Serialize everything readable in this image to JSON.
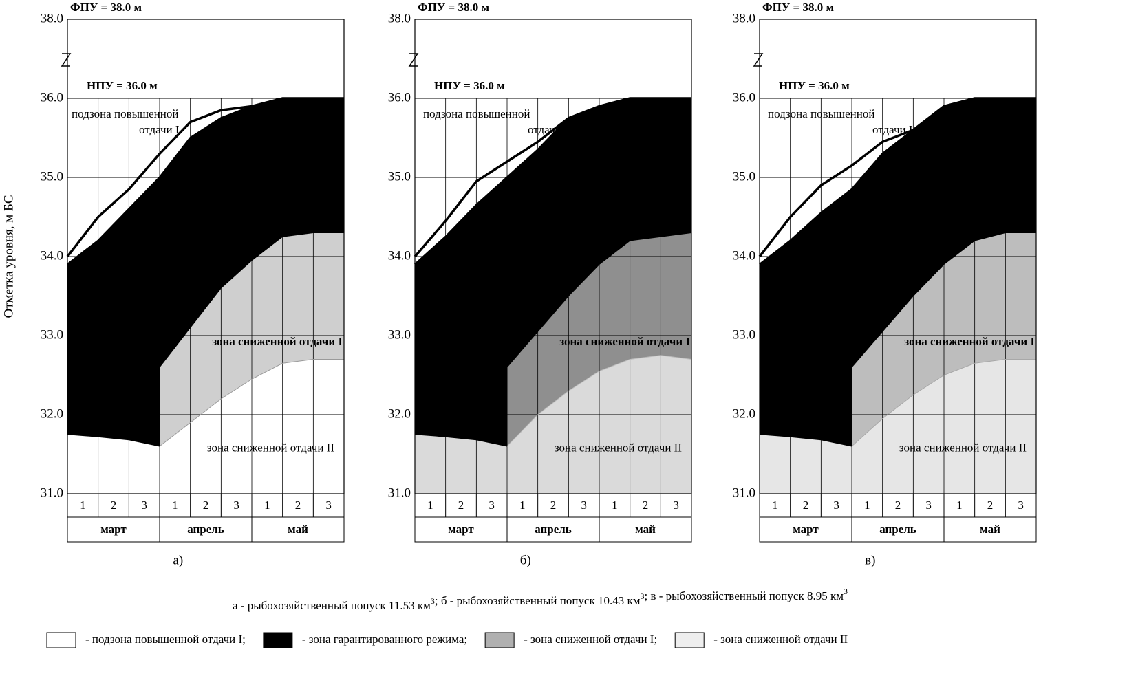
{
  "chart_data": [
    {
      "type": "area",
      "label": "а)",
      "ylabel": "Отметка уровня, м БС",
      "fpu": "ФПУ = 38.0 м",
      "npu": "НПУ = 36.0 м",
      "zone_labels": [
        "подзона  повышенной",
        "отдачи I",
        "зона сниженной отдачи I",
        "зона сниженной отдачи II"
      ],
      "decades": [
        "1",
        "2",
        "3",
        "1",
        "2",
        "3",
        "1",
        "2",
        "3"
      ],
      "months": [
        "март",
        "апрель",
        "май"
      ],
      "x": [
        0,
        1,
        2,
        3,
        3,
        4,
        5,
        6,
        7,
        8,
        9
      ],
      "xlim": [
        0,
        9
      ],
      "ylim": [
        31,
        38
      ],
      "axis_break": [
        36,
        38
      ],
      "yticks": [
        {
          "value": 31,
          "label": "31.0"
        },
        {
          "value": 32,
          "label": "32.0"
        },
        {
          "value": 33,
          "label": "33.0"
        },
        {
          "value": 34,
          "label": "34.0"
        },
        {
          "value": 35,
          "label": "35.0"
        },
        {
          "value": 36,
          "label": "36.0"
        },
        {
          "value": 38,
          "label": "38.0"
        }
      ],
      "zone_colors": [
        "#000000",
        "#cfcfcf",
        "#ffffff"
      ],
      "series": [
        {
          "color": "#000000",
          "values": [
            34.0,
            34.5,
            34.85,
            35.3,
            35.3,
            35.7,
            35.85,
            35.9,
            36,
            36,
            36
          ]
        },
        {
          "color": "#000000",
          "values": [
            33.9,
            34.2,
            34.6,
            35.0,
            35.0,
            35.5,
            35.75,
            35.9,
            36,
            36,
            36
          ]
        },
        {
          "color": "#000000",
          "values": [
            31.75,
            31.72,
            31.68,
            31.6,
            32.6,
            33.1,
            33.6,
            33.95,
            34.25,
            34.3,
            34.3
          ]
        },
        {
          "color": "#9a9a9a",
          "values": [
            null,
            null,
            null,
            null,
            31.6,
            31.9,
            32.2,
            32.45,
            32.65,
            32.7,
            32.7
          ]
        }
      ]
    },
    {
      "type": "area",
      "label": "б)",
      "fpu": "ФПУ = 38.0 м",
      "npu": "НПУ = 36.0 м",
      "zone_labels": [
        "подзона  повышенной",
        "отдачи I",
        "зона сниженной отдачи I",
        "зона сниженной отдачи II"
      ],
      "decades": [
        "1",
        "2",
        "3",
        "1",
        "2",
        "3",
        "1",
        "2",
        "3"
      ],
      "months": [
        "март",
        "апрель",
        "май"
      ],
      "x": [
        0,
        1,
        2,
        3,
        3,
        4,
        5,
        6,
        7,
        8,
        9
      ],
      "xlim": [
        0,
        9
      ],
      "ylim": [
        31,
        38
      ],
      "axis_break": [
        36,
        38
      ],
      "yticks": [
        {
          "value": 31,
          "label": "31.0"
        },
        {
          "value": 32,
          "label": "32.0"
        },
        {
          "value": 33,
          "label": "33.0"
        },
        {
          "value": 34,
          "label": "34.0"
        },
        {
          "value": 35,
          "label": "35.0"
        },
        {
          "value": 36,
          "label": "36.0"
        },
        {
          "value": 38,
          "label": "38.0"
        }
      ],
      "zone_colors": [
        "#000000",
        "#8f8f8f",
        "#dadada"
      ],
      "series": [
        {
          "color": "#000000",
          "values": [
            34.0,
            34.45,
            34.95,
            35.2,
            35.2,
            35.45,
            35.75,
            35.9,
            36,
            36,
            36
          ]
        },
        {
          "color": "#000000",
          "values": [
            33.9,
            34.25,
            34.65,
            35.0,
            35.0,
            35.35,
            35.75,
            35.9,
            36,
            36,
            36
          ]
        },
        {
          "color": "#000000",
          "values": [
            31.75,
            31.72,
            31.68,
            31.6,
            32.6,
            33.05,
            33.5,
            33.9,
            34.2,
            34.25,
            34.3
          ]
        },
        {
          "color": "#bdbdbd",
          "values": [
            null,
            null,
            null,
            null,
            31.6,
            32.0,
            32.3,
            32.55,
            32.7,
            32.75,
            32.7
          ]
        }
      ]
    },
    {
      "type": "area",
      "label": "в)",
      "fpu": "ФПУ = 38.0 м",
      "npu": "НПУ = 36.0 м",
      "zone_labels": [
        "подзона  повышенной",
        "отдачи I",
        "зона сниженной отдачи I",
        "зона сниженной отдачи II"
      ],
      "decades": [
        "1",
        "2",
        "3",
        "1",
        "2",
        "3",
        "1",
        "2",
        "3"
      ],
      "months": [
        "март",
        "апрель",
        "май"
      ],
      "x": [
        0,
        1,
        2,
        3,
        3,
        4,
        5,
        6,
        7,
        8,
        9
      ],
      "xlim": [
        0,
        9
      ],
      "ylim": [
        31,
        38
      ],
      "axis_break": [
        36,
        38
      ],
      "yticks": [
        {
          "value": 31,
          "label": "31.0"
        },
        {
          "value": 32,
          "label": "32.0"
        },
        {
          "value": 33,
          "label": "33.0"
        },
        {
          "value": 34,
          "label": "34.0"
        },
        {
          "value": 35,
          "label": "35.0"
        },
        {
          "value": 36,
          "label": "36.0"
        },
        {
          "value": 38,
          "label": "38.0"
        }
      ],
      "zone_colors": [
        "#000000",
        "#bdbdbd",
        "#e6e6e6"
      ],
      "series": [
        {
          "color": "#000000",
          "values": [
            34.0,
            34.5,
            34.9,
            35.15,
            35.15,
            35.45,
            35.6,
            35.9,
            36,
            36,
            36
          ]
        },
        {
          "color": "#000000",
          "values": [
            33.9,
            34.2,
            34.55,
            34.85,
            34.85,
            35.3,
            35.6,
            35.9,
            36,
            36,
            36
          ]
        },
        {
          "color": "#000000",
          "values": [
            31.75,
            31.72,
            31.68,
            31.6,
            32.6,
            33.05,
            33.5,
            33.9,
            34.2,
            34.3,
            34.3
          ]
        },
        {
          "color": "#a8a8a8",
          "values": [
            null,
            null,
            null,
            null,
            31.6,
            31.95,
            32.25,
            32.5,
            32.65,
            32.7,
            32.7
          ]
        }
      ]
    }
  ],
  "caption": [
    {
      "text": "а - рыбохозяйственный попуск 11.53 км",
      "sup": "3"
    },
    {
      "text": "; б  - рыбохозяйственный попуск 10.43 км",
      "sup": "3"
    },
    {
      "text": "; в - рыбохозяйственный попуск 8.95 км",
      "sup": "3"
    }
  ],
  "legend": [
    {
      "label": "- подзона повышенной отдачи I;",
      "color": "#ffffff"
    },
    {
      "label": "- зона гарантированного режима;",
      "color": "#000000"
    },
    {
      "label": "- зона сниженной отдачи I;",
      "color": "#b0b0b0"
    },
    {
      "label": "- зона сниженной отдачи II",
      "color": "#eeeeee"
    }
  ]
}
